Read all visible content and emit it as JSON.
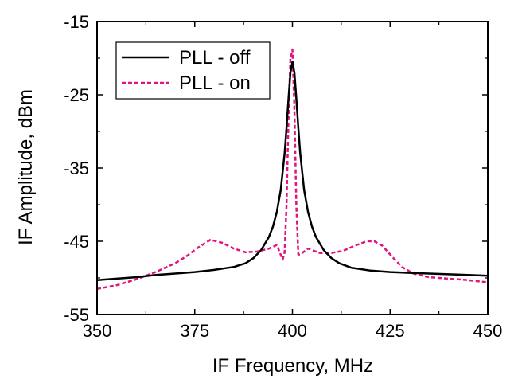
{
  "chart_data": {
    "type": "line",
    "title": "",
    "xlabel": "IF Frequency, MHz",
    "ylabel": "IF Amplitude, dBm",
    "xlim": [
      350,
      450
    ],
    "ylim": [
      -55,
      -15
    ],
    "x_ticks": [
      350,
      375,
      400,
      425,
      450
    ],
    "x_tick_labels": [
      "350",
      "375",
      "400",
      "425",
      "450"
    ],
    "y_ticks": [
      -55,
      -45,
      -35,
      -25,
      -15
    ],
    "y_tick_labels": [
      "-55",
      "-45",
      "-35",
      "-25",
      "-15"
    ],
    "legend_position": "top-left",
    "series": [
      {
        "name": "PLL - off",
        "color": "#000000",
        "style": "solid",
        "x": [
          350,
          355,
          360,
          365,
          370,
          375,
          380,
          385,
          388,
          390,
          392,
          394,
          395,
          396,
          397,
          398,
          398.5,
          399,
          399.5,
          400,
          400.5,
          401,
          401.5,
          402,
          403,
          404,
          405,
          406,
          408,
          410,
          412,
          415,
          420,
          425,
          430,
          435,
          440,
          445,
          450
        ],
        "y": [
          -50.3,
          -50.1,
          -49.9,
          -49.6,
          -49.4,
          -49.2,
          -48.9,
          -48.5,
          -48.0,
          -47.3,
          -46.2,
          -44.4,
          -43.0,
          -41.0,
          -38.0,
          -33.0,
          -29.5,
          -25.5,
          -22.0,
          -20.5,
          -22.0,
          -25.5,
          -29.5,
          -33.0,
          -38.0,
          -41.0,
          -43.0,
          -44.4,
          -46.2,
          -47.3,
          -48.0,
          -48.6,
          -49.0,
          -49.2,
          -49.3,
          -49.4,
          -49.5,
          -49.6,
          -49.7
        ]
      },
      {
        "name": "PLL - on",
        "color": "#e0147f",
        "style": "dashed",
        "x": [
          350,
          355,
          360,
          365,
          370,
          373,
          376,
          379,
          382,
          385,
          388,
          391,
          394,
          396,
          397.5,
          398,
          398.5,
          399,
          399.5,
          400,
          400.5,
          401,
          401.5,
          402,
          404,
          407,
          410,
          413,
          416,
          419,
          421,
          423,
          425,
          428,
          431,
          435,
          440,
          445,
          450
        ],
        "y": [
          -51.5,
          -51.0,
          -50.2,
          -49.2,
          -48.0,
          -47.0,
          -45.8,
          -44.8,
          -45.2,
          -46.0,
          -46.5,
          -46.4,
          -46.0,
          -45.5,
          -47.5,
          -46.5,
          -40.0,
          -28.0,
          -20.0,
          -18.8,
          -27.0,
          -40.0,
          -46.8,
          -46.8,
          -46.0,
          -46.6,
          -46.6,
          -46.3,
          -45.6,
          -45.0,
          -45.0,
          -45.6,
          -46.8,
          -48.5,
          -49.4,
          -49.9,
          -50.1,
          -50.3,
          -50.6
        ]
      }
    ]
  }
}
